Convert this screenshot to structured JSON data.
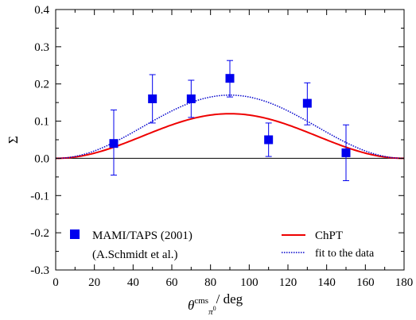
{
  "chart_data": {
    "type": "scatter",
    "xlabel": "θ",
    "xlabel_super": "cms",
    "xlabel_sub": "π",
    "xlabel_subsup": "0",
    "xlabel_unit": "/ deg",
    "ylabel": "Σ",
    "xlim": [
      0,
      180
    ],
    "ylim": [
      -0.3,
      0.4
    ],
    "x_ticks": [
      0,
      20,
      40,
      60,
      80,
      100,
      120,
      140,
      160,
      180
    ],
    "x_tick_labels": [
      "0",
      "20",
      "40",
      "60",
      "80",
      "100",
      "120",
      "140",
      "160",
      "180"
    ],
    "y_ticks": [
      -0.3,
      -0.2,
      -0.1,
      0.0,
      0.1,
      0.2,
      0.3,
      0.4
    ],
    "y_tick_labels": [
      "-0.3",
      "-0.2",
      "-0.1",
      "0.0",
      "0.1",
      "0.2",
      "0.3",
      "0.4"
    ],
    "zero_line": true,
    "legend_position": "bottom",
    "series": [
      {
        "name": "MAMI/TAPS (2001)",
        "name_line2": "(A.Schmidt et al.)",
        "kind": "points-with-errors",
        "color": "#0000ee",
        "x": [
          30,
          50,
          70,
          90,
          110,
          130,
          150
        ],
        "y": [
          0.04,
          0.16,
          0.16,
          0.215,
          0.05,
          0.148,
          0.015
        ],
        "err_low": [
          0.085,
          0.065,
          0.05,
          0.05,
          0.045,
          0.058,
          0.075
        ],
        "err_high": [
          0.09,
          0.065,
          0.05,
          0.048,
          0.045,
          0.055,
          0.075
        ]
      },
      {
        "name": "ChPT",
        "kind": "line",
        "color": "#ee0000",
        "style": "solid",
        "amplitude": 0.12
      },
      {
        "name": "fit to the data",
        "kind": "line",
        "color": "#0000cc",
        "style": "dotted",
        "amplitude": 0.17
      }
    ]
  }
}
